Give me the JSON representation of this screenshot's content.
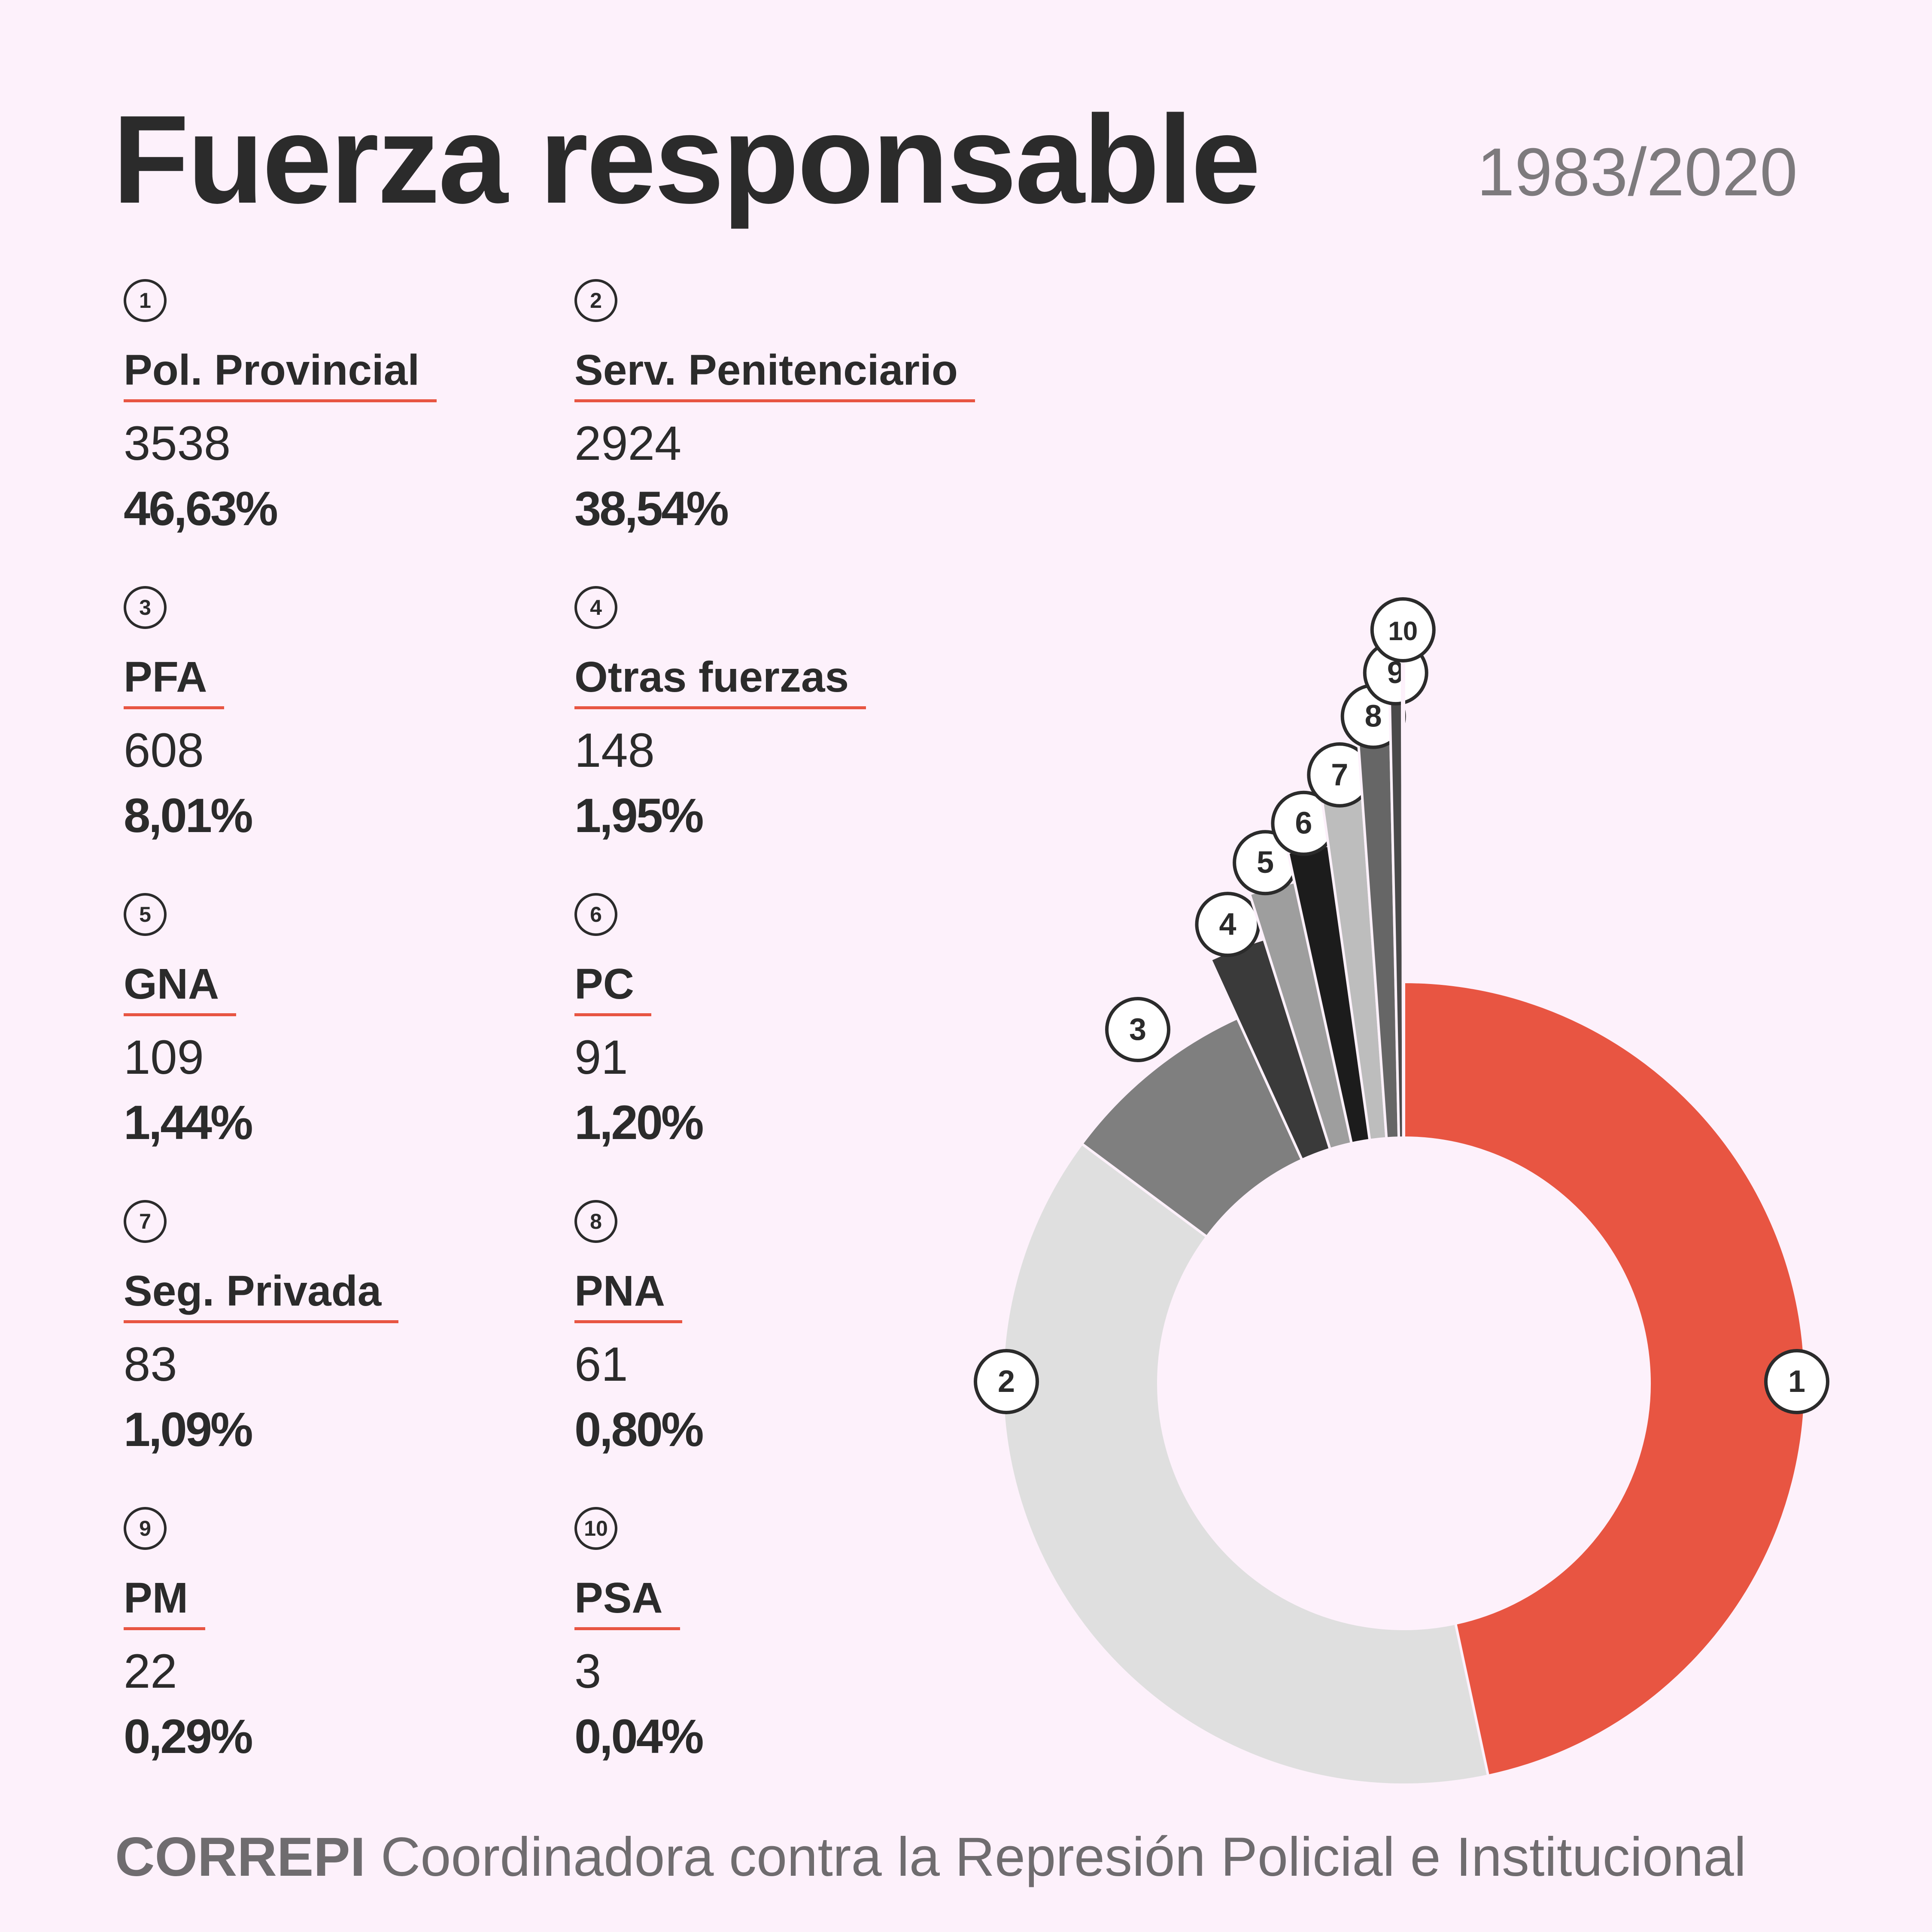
{
  "header": {
    "title": "Fuerza responsable",
    "period": "1983/2020"
  },
  "chart_data": {
    "type": "pie",
    "style": "donut, exploded small slices",
    "slices": [
      {
        "id": "1",
        "label": "Pol. Provincial",
        "count": "3538",
        "value": 46.63,
        "percent": "46,63%",
        "color": "#e85542"
      },
      {
        "id": "2",
        "label": "Serv. Penitenciario",
        "count": "2924",
        "value": 38.54,
        "percent": "38,54%",
        "color": "#dfdfdf"
      },
      {
        "id": "3",
        "label": "PFA",
        "count": "608",
        "value": 8.01,
        "percent": "8,01%",
        "color": "#7f7f7f"
      },
      {
        "id": "4",
        "label": "Otras fuerzas",
        "count": "148",
        "value": 1.95,
        "percent": "1,95%",
        "color": "#3a3a3a"
      },
      {
        "id": "5",
        "label": "GNA",
        "count": "109",
        "value": 1.44,
        "percent": "1,44%",
        "color": "#9e9e9e"
      },
      {
        "id": "6",
        "label": "PC",
        "count": "91",
        "value": 1.2,
        "percent": "1,20%",
        "color": "#1c1c1c"
      },
      {
        "id": "7",
        "label": "Seg. Privada",
        "count": "83",
        "value": 1.09,
        "percent": "1,09%",
        "color": "#bdbdbd"
      },
      {
        "id": "8",
        "label": "PNA",
        "count": "61",
        "value": 0.8,
        "percent": "0,80%",
        "color": "#666666"
      },
      {
        "id": "9",
        "label": "PM",
        "count": "22",
        "value": 0.29,
        "percent": "0,29%",
        "color": "#4a4a4a"
      },
      {
        "id": "10",
        "label": "PSA",
        "count": "3",
        "value": 0.04,
        "percent": "0,04%",
        "color": "#8a8a8a"
      }
    ]
  },
  "footer": {
    "org": "CORREPI",
    "description": "Coordinadora contra la Represión Policial e Institucional"
  }
}
